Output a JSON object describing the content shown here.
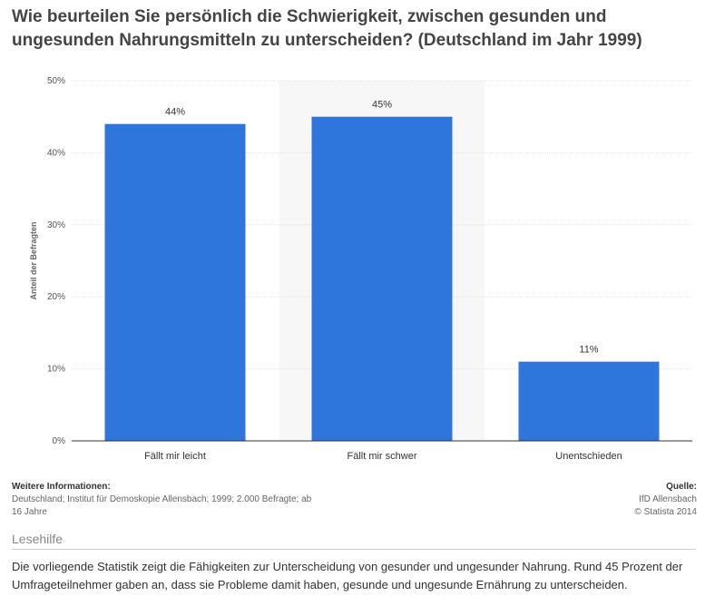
{
  "title": "Wie beurteilen Sie persönlich die Schwierigkeit, zwischen gesunden und ungesunden Nahrungsmitteln zu unterscheiden? (Deutschland im Jahr 1999)",
  "chart_data": {
    "type": "bar",
    "title": "Wie beurteilen Sie persönlich die Schwierigkeit, zwischen gesunden und ungesunden Nahrungsmitteln zu unterscheiden? (Deutschland im Jahr 1999)",
    "categories": [
      "Fällt mir leicht",
      "Fällt mir schwer",
      "Unentschieden"
    ],
    "values": [
      44,
      45,
      11
    ],
    "value_labels": [
      "44%",
      "45%",
      "11%"
    ],
    "highlighted_index": 1,
    "xlabel": "",
    "ylabel": "Anteil der Befragten",
    "ylim": [
      0,
      50
    ],
    "yticks": [
      0,
      10,
      20,
      30,
      40,
      50
    ],
    "ytick_labels": [
      "0%",
      "10%",
      "20%",
      "30%",
      "40%",
      "50%"
    ],
    "grid": true,
    "legend": "none"
  },
  "colors": {
    "bar": "#2e75dc",
    "highlight_band": "#f7f7f7",
    "grid": "#e2e2e2"
  },
  "info": {
    "heading": "Weitere Informationen:",
    "line1": "Deutschland; Institut für Demoskopie Allensbach; 1999; 2.000 Befragte; ab",
    "line2": "16 Jahre"
  },
  "source": {
    "heading": "Quelle:",
    "line1": "IfD Allensbach",
    "line2": "© Statista 2014"
  },
  "lesehilfe": {
    "title": "Lesehilfe",
    "text": "Die vorliegende Statistik zeigt die Fähigkeiten zur Unterscheidung von gesunder und ungesunder Nahrung. Rund 45 Prozent der Umfrageteilnehmer gaben an, dass sie Probleme damit haben, gesunde und ungesunde Ernährung zu unterscheiden."
  }
}
